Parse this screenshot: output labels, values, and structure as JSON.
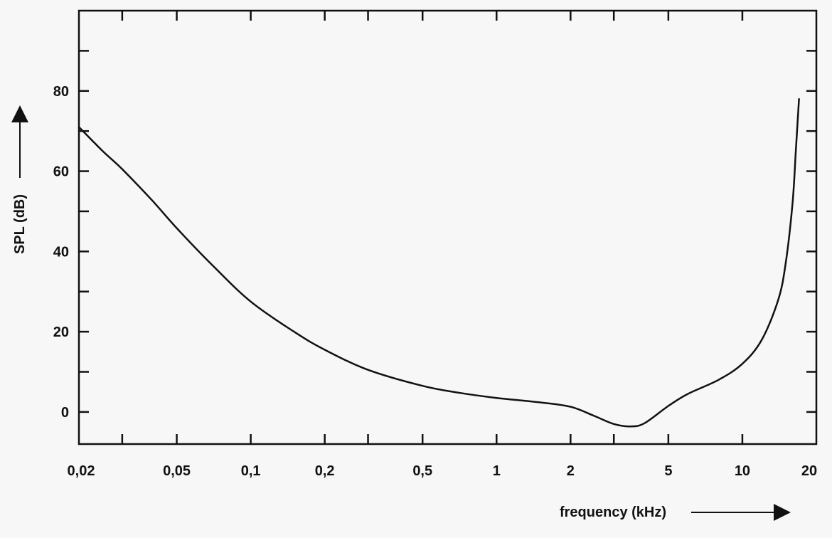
{
  "chart_data": {
    "type": "line",
    "title": "",
    "xlabel": "frequency (kHz)",
    "ylabel": "SPL (dB)",
    "xscale": "log",
    "xlim": [
      0.02,
      20
    ],
    "ylim": [
      -8,
      100
    ],
    "grid": false,
    "x_tick_values": [
      0.02,
      0.05,
      0.1,
      0.2,
      0.5,
      1,
      2,
      5,
      10,
      20
    ],
    "x_tick_labels": [
      "0,02",
      "0,05",
      "0,1",
      "0,2",
      "0,5",
      "1",
      "2",
      "5",
      "10",
      "20"
    ],
    "x_minor_ticks": [
      0.03,
      0.3,
      3
    ],
    "y_tick_values": [
      0,
      20,
      40,
      60,
      80
    ],
    "y_tick_labels": [
      "0",
      "20",
      "40",
      "60",
      "80"
    ],
    "y_minor_ticks": [
      10,
      30,
      50,
      70,
      90
    ],
    "series": [
      {
        "x": [
          0.02,
          0.025,
          0.03,
          0.04,
          0.05,
          0.07,
          0.1,
          0.15,
          0.2,
          0.3,
          0.5,
          0.7,
          1,
          1.5,
          2,
          2.5,
          3,
          3.5,
          4,
          5,
          6,
          8,
          10,
          12,
          14,
          15,
          16,
          16.5,
          17
        ],
        "y": [
          71,
          65,
          60.5,
          52.5,
          45.8,
          36.5,
          27.5,
          20,
          15.5,
          10.5,
          6.5,
          4.8,
          3.5,
          2.4,
          1.3,
          -1,
          -3,
          -3.6,
          -2.8,
          1.5,
          4.5,
          8,
          12,
          18,
          28,
          37,
          52,
          65,
          78
        ]
      }
    ]
  }
}
